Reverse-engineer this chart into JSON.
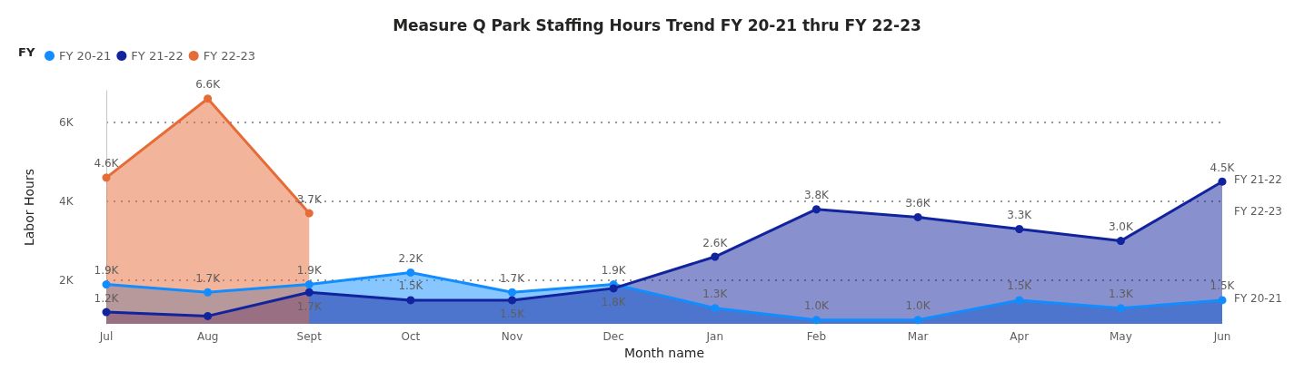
{
  "chart_data": {
    "type": "area",
    "title": "Measure Q Park Staffing Hours Trend FY 20-21 thru FY 22-23",
    "xlabel": "Month name",
    "ylabel": "Labor Hours",
    "legend_title": "FY",
    "categories": [
      "Jul",
      "Aug",
      "Sept",
      "Oct",
      "Nov",
      "Dec",
      "Jan",
      "Feb",
      "Mar",
      "Apr",
      "May",
      "Jun"
    ],
    "series": [
      {
        "name": "FY 20-21",
        "color": "#118dff",
        "values": [
          1900,
          1700,
          1900,
          2200,
          1700,
          1900,
          1300,
          1000,
          1000,
          1500,
          1300,
          1500
        ],
        "value_labels": [
          "1.9K",
          "1.7K",
          "1.9K",
          "2.2K",
          "1.7K",
          "1.9K",
          "1.3K",
          "1.0K",
          "1.0K",
          "1.5K",
          "1.3K",
          "1.5K"
        ]
      },
      {
        "name": "FY 21-22",
        "color": "#12239e",
        "values": [
          1200,
          1100,
          1700,
          1500,
          1500,
          1800,
          2600,
          3800,
          3600,
          3300,
          3000,
          4500
        ],
        "value_labels": [
          "1.2K",
          null,
          "1.7K",
          "1.5K",
          "1.5K",
          "1.8K",
          "2.6K",
          "3.8K",
          "3.6K",
          "3.3K",
          "3.0K",
          "4.5K"
        ]
      },
      {
        "name": "FY 22-23",
        "color": "#e66c37",
        "values": [
          4600,
          6600,
          3700,
          null,
          null,
          null,
          null,
          null,
          null,
          null,
          null,
          null
        ],
        "value_labels": [
          "4.6K",
          "6.6K",
          "3.7K",
          null,
          null,
          null,
          null,
          null,
          null,
          null,
          null,
          null
        ]
      }
    ],
    "ylim": [
      900,
      6800
    ],
    "yticks": [
      {
        "value": 2000,
        "label": "2K"
      },
      {
        "value": 4000,
        "label": "4K"
      },
      {
        "value": 6000,
        "label": "6K"
      }
    ],
    "grid": "y",
    "legend": "top left",
    "marker": "circle",
    "line_style": "solid"
  }
}
